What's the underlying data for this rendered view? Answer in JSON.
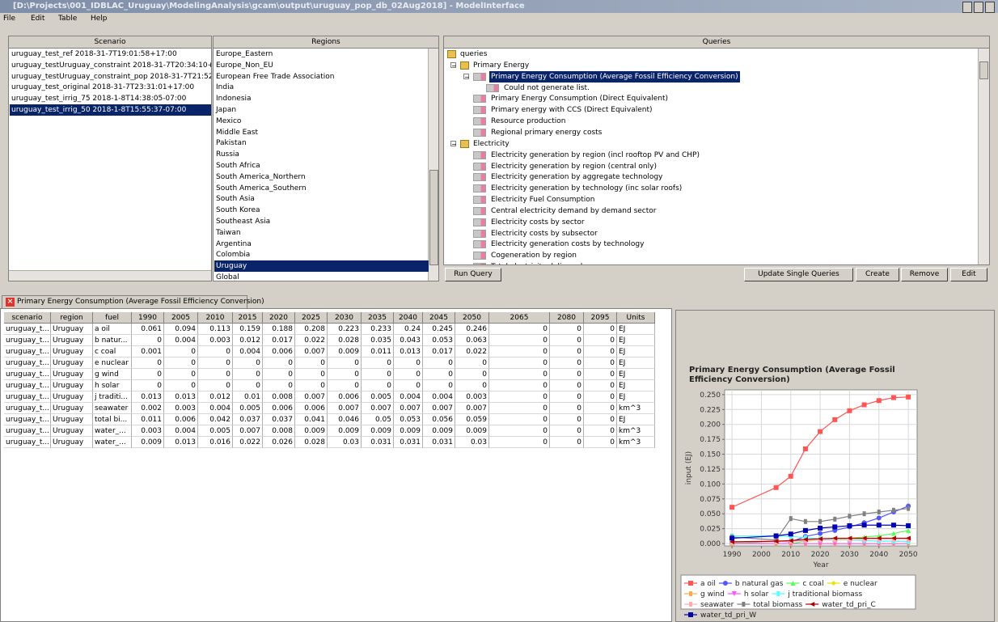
{
  "window_title": "[D:\\Projects\\001_IDBLAC_Uruguay\\ModelingAnalysis\\gcam\\output\\uruguay_pop_db_02Aug2018] - ModelInterface",
  "menu": [
    "File",
    "Edit",
    "Table",
    "Help"
  ],
  "scenario_panel": {
    "header": "Scenario",
    "items": [
      "uruguay_test_ref 2018-31-7T19:01:58+17:00",
      "uruguay_testUruguay_constraint 2018-31-7T20:34:10+17",
      "uruguay_testUruguay_constraint_pop 2018-31-7T21:52:1",
      "uruguay_test_original 2018-31-7T23:31:01+17:00",
      "uruguay_test_irrig_75 2018-1-8T14:38:05-07:00",
      "uruguay_test_irrig_50 2018-1-8T15:55:37-07:00"
    ],
    "selected": 5
  },
  "regions_panel": {
    "header": "Regions",
    "items": [
      "Europe_Eastern",
      "Europe_Non_EU",
      "European Free Trade Association",
      "India",
      "Indonesia",
      "Japan",
      "Mexico",
      "Middle East",
      "Pakistan",
      "Russia",
      "South Africa",
      "South America_Northern",
      "South America_Southern",
      "South Asia",
      "South Korea",
      "Southeast Asia",
      "Taiwan",
      "Argentina",
      "Colombia",
      "Uruguay",
      "Global"
    ],
    "selected": 19
  },
  "queries_panel": {
    "header": "Queries",
    "tree": {
      "label": "queries",
      "children": [
        {
          "label": "Primary Energy",
          "children": [
            {
              "label": "Primary Energy Consumption (Average Fossil Efficiency Conversion)",
              "selected": true,
              "children": [
                {
                  "label": "Could not generate list."
                }
              ]
            },
            {
              "label": "Primary Energy Consumption (Direct Equivalent)"
            },
            {
              "label": "Primary energy with CCS (Direct Equivalent)"
            },
            {
              "label": "Resource production"
            },
            {
              "label": "Regional primary energy costs"
            }
          ]
        },
        {
          "label": "Electricity",
          "children": [
            {
              "label": "Electricity generation by region (incl rooftop PV and CHP)"
            },
            {
              "label": "Electricity generation by region (central only)"
            },
            {
              "label": "Electricity generation by aggregate technology"
            },
            {
              "label": "Electricity generation by technology (inc solar roofs)"
            },
            {
              "label": "Electricity Fuel Consumption"
            },
            {
              "label": "Central electricity demand by demand sector"
            },
            {
              "label": "Electricity costs by sector"
            },
            {
              "label": "Electricity costs by subsector"
            },
            {
              "label": "Electricity generation costs by technology"
            },
            {
              "label": "Cogeneration by region"
            },
            {
              "label": "Total electricity delivered"
            }
          ]
        }
      ]
    },
    "buttons": [
      "Update Single Queries",
      "Create",
      "Remove",
      "Edit"
    ]
  },
  "run_query_button": "Run Query",
  "result_tab": "Primary Energy Consumption (Average Fossil Efficiency Conversion)",
  "table": {
    "columns": [
      "scenario",
      "region",
      "fuel",
      "1990",
      "2005",
      "2010",
      "2015",
      "2020",
      "2025",
      "2030",
      "2035",
      "2040",
      "2045",
      "2050",
      "2065",
      "2080",
      "2095",
      "Units"
    ],
    "rows": [
      [
        "uruguay_t...",
        "Uruguay",
        "a oil",
        0.061,
        0.094,
        0.113,
        0.159,
        0.188,
        0.208,
        0.223,
        0.233,
        0.24,
        0.245,
        0.246,
        0,
        0,
        0,
        "EJ"
      ],
      [
        "uruguay_t...",
        "Uruguay",
        "b natur...",
        0,
        0.004,
        0.003,
        0.012,
        0.017,
        0.022,
        0.028,
        0.035,
        0.043,
        0.053,
        0.063,
        0,
        0,
        0,
        "EJ"
      ],
      [
        "uruguay_t...",
        "Uruguay",
        "c coal",
        0.001,
        0,
        0,
        0.004,
        0.006,
        0.007,
        0.009,
        0.011,
        0.013,
        0.017,
        0.022,
        0,
        0,
        0,
        "EJ"
      ],
      [
        "uruguay_t...",
        "Uruguay",
        "e nuclear",
        0,
        0,
        0,
        0,
        0,
        0,
        0,
        0,
        0,
        0,
        0,
        0,
        0,
        0,
        "EJ"
      ],
      [
        "uruguay_t...",
        "Uruguay",
        "g wind",
        0,
        0,
        0,
        0,
        0,
        0,
        0,
        0,
        0,
        0,
        0,
        0,
        0,
        0,
        "EJ"
      ],
      [
        "uruguay_t...",
        "Uruguay",
        "h solar",
        0,
        0,
        0,
        0,
        0,
        0,
        0,
        0,
        0,
        0,
        0,
        0,
        0,
        0,
        "EJ"
      ],
      [
        "uruguay_t...",
        "Uruguay",
        "j traditi...",
        0.013,
        0.013,
        0.012,
        0.01,
        0.008,
        0.007,
        0.006,
        0.005,
        0.004,
        0.004,
        0.003,
        0,
        0,
        0,
        "EJ"
      ],
      [
        "uruguay_t...",
        "Uruguay",
        "seawater",
        0.002,
        0.003,
        0.004,
        0.005,
        0.006,
        0.006,
        0.007,
        0.007,
        0.007,
        0.007,
        0.007,
        0,
        0,
        0,
        "km^3"
      ],
      [
        "uruguay_t...",
        "Uruguay",
        "total bi...",
        0.011,
        0.006,
        0.042,
        0.037,
        0.037,
        0.041,
        0.046,
        0.05,
        0.053,
        0.056,
        0.059,
        0,
        0,
        0,
        "EJ"
      ],
      [
        "uruguay_t...",
        "Uruguay",
        "water_...",
        0.003,
        0.004,
        0.005,
        0.007,
        0.008,
        0.009,
        0.009,
        0.009,
        0.009,
        0.009,
        0.009,
        0,
        0,
        0,
        "km^3"
      ],
      [
        "uruguay_t...",
        "Uruguay",
        "water_...",
        0.009,
        0.013,
        0.016,
        0.022,
        0.026,
        0.028,
        0.03,
        0.031,
        0.031,
        0.031,
        0.03,
        0,
        0,
        0,
        "km^3"
      ]
    ]
  },
  "chart_data": {
    "type": "line",
    "title": "Primary Energy Consumption (Average Fossil Efficiency Conversion)",
    "x_label": "Year",
    "y_label": "input (EJ)",
    "x": [
      1990,
      2005,
      2010,
      2015,
      2020,
      2025,
      2030,
      2035,
      2040,
      2045,
      2050
    ],
    "xlim": [
      1987.5,
      2053
    ],
    "xticks": [
      1990,
      2000,
      2010,
      2020,
      2030,
      2040,
      2050
    ],
    "ylim": [
      -0.004,
      0.258
    ],
    "yticks": [
      {
        "value": 0,
        "label": "0.000"
      },
      {
        "value": 0.025,
        "label": "0.025"
      },
      {
        "value": 0.05,
        "label": "0.050"
      },
      {
        "value": 0.075,
        "label": "0.075"
      },
      {
        "value": 0.1,
        "label": "0.100"
      },
      {
        "value": 0.125,
        "label": "0.125"
      },
      {
        "value": 0.15,
        "label": "0.150"
      },
      {
        "value": 0.175,
        "label": "0.175"
      },
      {
        "value": 0.2,
        "label": "0.200"
      },
      {
        "value": 0.225,
        "label": "0.225"
      },
      {
        "value": 0.25,
        "label": "0.250"
      }
    ],
    "grid": true,
    "series": [
      {
        "name": "a oil",
        "color": "#ff5555",
        "marker": "square",
        "values": [
          0.061,
          0.094,
          0.113,
          0.159,
          0.188,
          0.208,
          0.223,
          0.233,
          0.24,
          0.245,
          0.246
        ]
      },
      {
        "name": "b natural gas",
        "color": "#5555ff",
        "marker": "circle",
        "values": [
          0,
          0.004,
          0.003,
          0.012,
          0.017,
          0.022,
          0.028,
          0.035,
          0.043,
          0.053,
          0.063
        ]
      },
      {
        "name": "c coal",
        "color": "#55ff55",
        "marker": "triangle",
        "values": [
          0.001,
          0,
          0,
          0.004,
          0.006,
          0.007,
          0.009,
          0.011,
          0.013,
          0.017,
          0.022
        ]
      },
      {
        "name": "e nuclear",
        "color": "#e6e600",
        "marker": "diamond",
        "values": [
          0,
          0,
          0,
          0,
          0,
          0,
          0,
          0,
          0,
          0,
          0
        ]
      },
      {
        "name": "g wind",
        "color": "#ffaa44",
        "marker": "bar",
        "values": [
          0,
          0,
          0,
          0,
          0,
          0,
          0,
          0,
          0,
          0,
          0
        ]
      },
      {
        "name": "h solar",
        "color": "#ff55ff",
        "marker": "down",
        "values": [
          0,
          0,
          0,
          0,
          0,
          0,
          0,
          0,
          0,
          0,
          0
        ]
      },
      {
        "name": "j traditional biomass",
        "color": "#55ffff",
        "marker": "bar",
        "values": [
          0.013,
          0.013,
          0.012,
          0.01,
          0.008,
          0.007,
          0.006,
          0.005,
          0.004,
          0.004,
          0.003
        ]
      },
      {
        "name": "seawater",
        "color": "#ffafaf",
        "marker": "bar",
        "values": [
          0.002,
          0.003,
          0.004,
          0.005,
          0.006,
          0.006,
          0.007,
          0.007,
          0.007,
          0.007,
          0.007
        ]
      },
      {
        "name": "total biomass",
        "color": "#808080",
        "marker": "bar",
        "values": [
          0.011,
          0.006,
          0.042,
          0.037,
          0.037,
          0.041,
          0.046,
          0.05,
          0.053,
          0.056,
          0.059
        ]
      },
      {
        "name": "water_td_pri_C",
        "color": "#b00000",
        "marker": "left",
        "values": [
          0.003,
          0.004,
          0.005,
          0.007,
          0.008,
          0.009,
          0.009,
          0.009,
          0.009,
          0.009,
          0.009
        ]
      },
      {
        "name": "water_td_pri_W",
        "color": "#0000b0",
        "marker": "square",
        "values": [
          0.009,
          0.013,
          0.016,
          0.022,
          0.026,
          0.028,
          0.03,
          0.031,
          0.031,
          0.031,
          0.03
        ]
      }
    ]
  }
}
